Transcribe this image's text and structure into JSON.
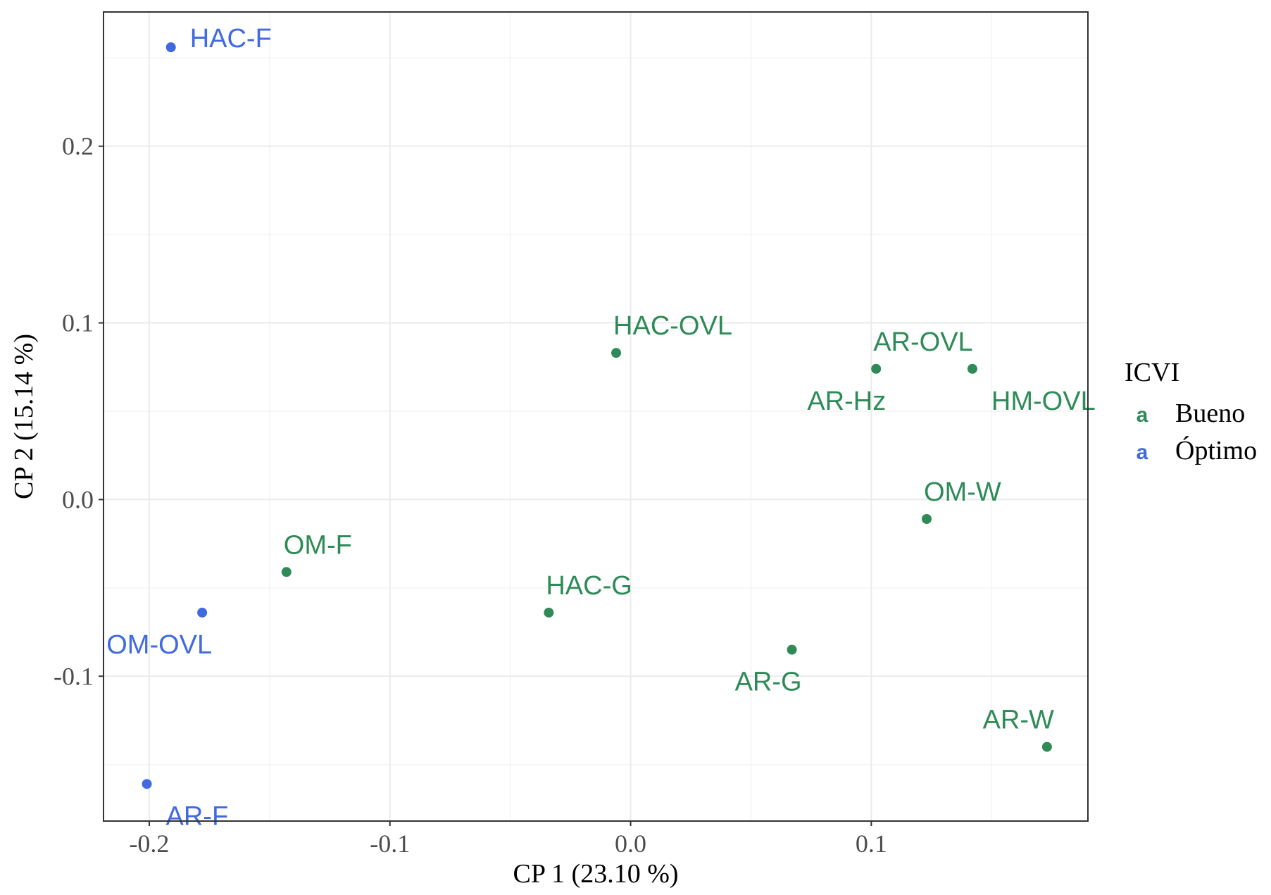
{
  "chart_data": {
    "type": "scatter",
    "xlabel": "CP 1 (23.10 %)",
    "ylabel": "CP 2 (15.14 %)",
    "xlim": [
      -0.219,
      0.19
    ],
    "ylim": [
      -0.182,
      0.276
    ],
    "x_ticks": [
      -0.2,
      -0.1,
      0.0,
      0.1
    ],
    "x_tick_labels": [
      "-0.2",
      "-0.1",
      "0.0",
      "0.1"
    ],
    "y_ticks": [
      -0.1,
      0.0,
      0.1,
      0.2
    ],
    "y_tick_labels": [
      "-0.1",
      "0.0",
      "0.1",
      "0.2"
    ],
    "grid": true,
    "legend": {
      "title": "ICVI",
      "placement": "right",
      "key_glyph": "a",
      "entries": [
        {
          "label": "Bueno",
          "color": "#2e8b57"
        },
        {
          "label": "Óptimo",
          "color": "#4169e1"
        }
      ]
    },
    "points": [
      {
        "label": "HAC-F",
        "x": -0.191,
        "y": 0.256,
        "group": "Óptimo",
        "label_pos": "right"
      },
      {
        "label": "OM-OVL",
        "x": -0.178,
        "y": -0.064,
        "group": "Óptimo",
        "label_pos": "below-left"
      },
      {
        "label": "AR-F",
        "x": -0.201,
        "y": -0.161,
        "group": "Óptimo",
        "label_pos": "below-right"
      },
      {
        "label": "OM-F",
        "x": -0.143,
        "y": -0.041,
        "group": "Bueno",
        "label_pos": "above-right"
      },
      {
        "label": "HAC-G",
        "x": -0.034,
        "y": -0.064,
        "group": "Bueno",
        "label_pos": "above-right"
      },
      {
        "label": "HAC-OVL",
        "x": -0.006,
        "y": 0.083,
        "group": "Bueno",
        "label_pos": "above-right"
      },
      {
        "label": "AR-G",
        "x": 0.067,
        "y": -0.085,
        "group": "Bueno",
        "label_pos": "below-left"
      },
      {
        "label": "AR-OVL",
        "x": 0.102,
        "y": 0.074,
        "group": "Bueno",
        "label_pos": "above-right"
      },
      {
        "label": "AR-Hz",
        "x": 0.102,
        "y": 0.074,
        "group": "Bueno",
        "label_pos": "below-left"
      },
      {
        "label": "HM-OVL",
        "x": 0.142,
        "y": 0.074,
        "group": "Bueno",
        "label_pos": "below-right"
      },
      {
        "label": "OM-W",
        "x": 0.123,
        "y": -0.011,
        "group": "Bueno",
        "label_pos": "above-right"
      },
      {
        "label": "AR-W",
        "x": 0.173,
        "y": -0.14,
        "group": "Bueno",
        "label_pos": "above-left"
      }
    ]
  }
}
